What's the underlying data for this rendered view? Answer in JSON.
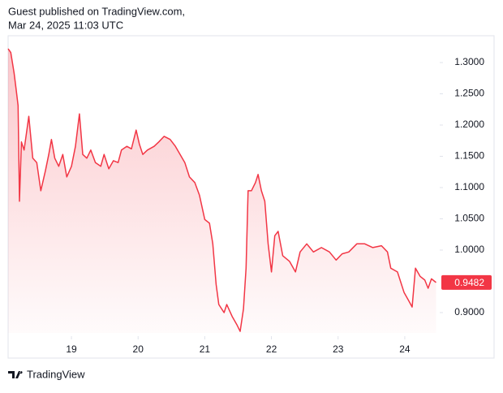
{
  "header": {
    "line1": "Guest published on TradingView.com,",
    "line2": "Mar 24, 2025 11:03 UTC"
  },
  "footer": {
    "brand": "TradingView"
  },
  "chart_data": {
    "type": "area",
    "color": "#f23645",
    "x": [
      18.05,
      18.09,
      18.14,
      18.17,
      18.2,
      18.22,
      18.25,
      18.29,
      18.36,
      18.42,
      18.48,
      18.54,
      18.61,
      18.66,
      18.7,
      18.75,
      18.81,
      18.87,
      18.93,
      19.0,
      19.06,
      19.12,
      19.17,
      19.23,
      19.29,
      19.36,
      19.44,
      19.49,
      19.56,
      19.63,
      19.7,
      19.75,
      19.83,
      19.9,
      19.97,
      20.02,
      20.07,
      20.14,
      20.24,
      20.31,
      20.39,
      20.48,
      20.56,
      20.63,
      20.7,
      20.77,
      20.85,
      20.92,
      21.0,
      21.07,
      21.12,
      21.17,
      21.21,
      21.29,
      21.33,
      21.41,
      21.48,
      21.53,
      21.58,
      21.62,
      21.65,
      21.7,
      21.76,
      21.8,
      21.85,
      21.9,
      21.95,
      22.0,
      22.05,
      22.1,
      22.17,
      22.27,
      22.36,
      22.43,
      22.53,
      22.63,
      22.75,
      22.87,
      22.97,
      23.06,
      23.16,
      23.28,
      23.4,
      23.52,
      23.65,
      23.74,
      23.79,
      23.89,
      23.99,
      24.06,
      24.11,
      24.16,
      24.23,
      24.3,
      24.35,
      24.4,
      24.47
    ],
    "values": [
      1.322,
      1.316,
      1.283,
      1.257,
      1.231,
      1.078,
      1.173,
      1.16,
      1.214,
      1.147,
      1.14,
      1.095,
      1.127,
      1.153,
      1.177,
      1.147,
      1.134,
      1.153,
      1.117,
      1.134,
      1.166,
      1.218,
      1.153,
      1.147,
      1.16,
      1.14,
      1.134,
      1.153,
      1.13,
      1.143,
      1.14,
      1.16,
      1.166,
      1.162,
      1.192,
      1.169,
      1.153,
      1.16,
      1.166,
      1.173,
      1.182,
      1.177,
      1.166,
      1.153,
      1.14,
      1.117,
      1.108,
      1.088,
      1.049,
      1.043,
      1.01,
      0.945,
      0.913,
      0.9,
      0.913,
      0.894,
      0.881,
      0.87,
      0.906,
      0.971,
      1.095,
      1.095,
      1.108,
      1.121,
      1.095,
      1.078,
      1.01,
      0.965,
      1.023,
      1.03,
      0.991,
      0.982,
      0.965,
      0.997,
      1.01,
      0.997,
      1.004,
      0.997,
      0.984,
      0.994,
      0.997,
      1.01,
      1.01,
      1.004,
      1.007,
      0.997,
      0.971,
      0.965,
      0.932,
      0.919,
      0.909,
      0.971,
      0.958,
      0.952,
      0.939,
      0.954,
      0.9482
    ],
    "last_value": 0.9482,
    "xlim": [
      18.05,
      24.5
    ],
    "xticks": [
      19,
      20,
      21,
      22,
      23,
      24
    ],
    "ylim": [
      0.8675,
      1.3429
    ],
    "yticks": [
      {
        "value": 0.9,
        "label": "0.9000"
      },
      {
        "value": 1.0,
        "label": "1.0000"
      },
      {
        "value": 1.05,
        "label": "1.0500"
      },
      {
        "value": 1.1,
        "label": "1.1000"
      },
      {
        "value": 1.15,
        "label": "1.1500"
      },
      {
        "value": 1.2,
        "label": "1.2000"
      },
      {
        "value": 1.25,
        "label": "1.2500"
      },
      {
        "value": 1.3,
        "label": "1.3000"
      }
    ],
    "grid": false
  }
}
